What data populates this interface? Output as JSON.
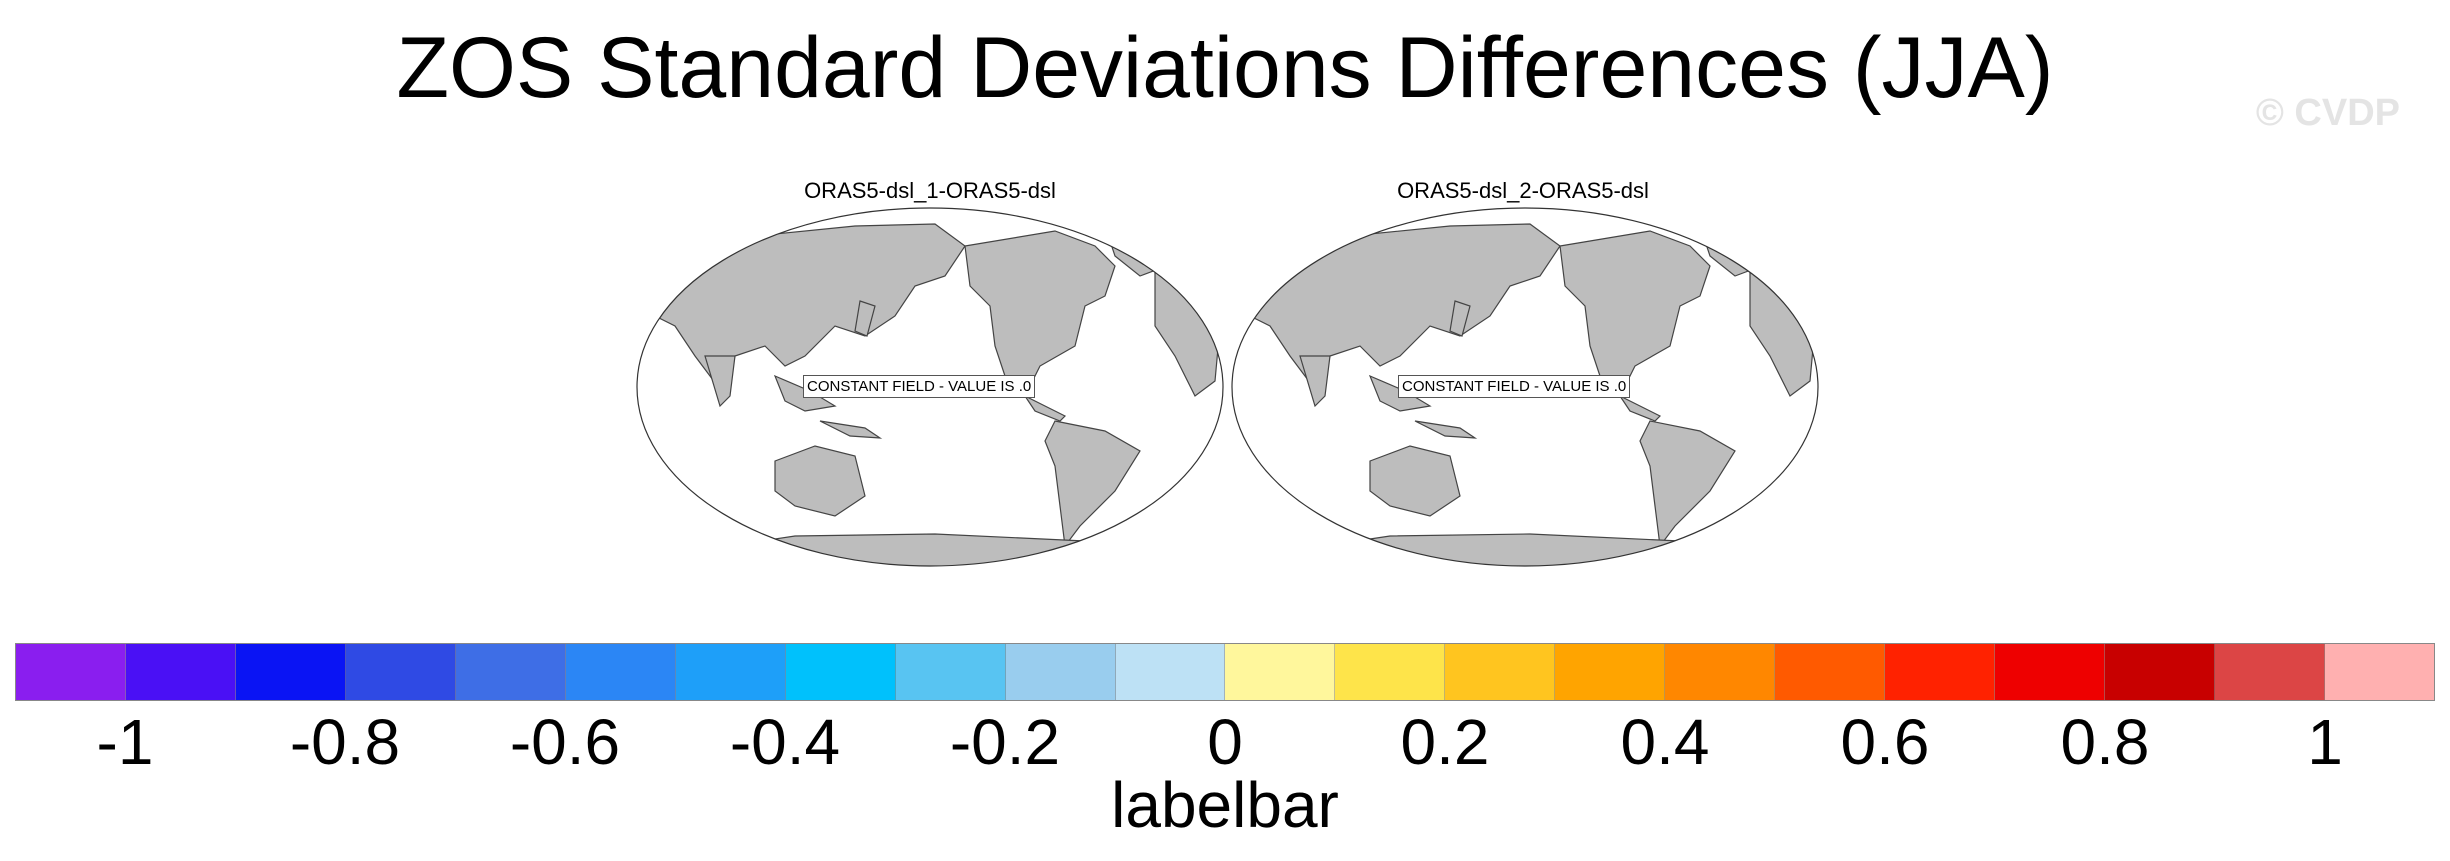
{
  "title": "ZOS Standard Deviations Differences (JJA)",
  "watermark": "© CVDP",
  "panels": [
    {
      "title": "ORAS5-dsl_1-ORAS5-dsl",
      "message": "CONSTANT FIELD - VALUE IS .0"
    },
    {
      "title": "ORAS5-dsl_2-ORAS5-dsl",
      "message": "CONSTANT FIELD - VALUE IS .0"
    }
  ],
  "map_style": {
    "land_color": "#bdbdbd",
    "ocean_color": "#ffffff",
    "projection": "Robinson",
    "central_longitude": "Pacific"
  },
  "labelbar": {
    "title": "labelbar",
    "colors": [
      "#8a1eef",
      "#4a10f5",
      "#0a14f4",
      "#2f4ae4",
      "#3e6ee6",
      "#2b86f5",
      "#1e9ff9",
      "#00c1fc",
      "#58c4f2",
      "#99cdee",
      "#bde1f5",
      "#fff79c",
      "#fee44a",
      "#ffc51f",
      "#ffa400",
      "#ff8700",
      "#ff5a00",
      "#ff2200",
      "#ee0000",
      "#c80000",
      "#dc4545",
      "#ffb0b0"
    ],
    "ticks": [
      "-1",
      "-0.8",
      "-0.6",
      "-0.4",
      "-0.2",
      "0",
      "0.2",
      "0.4",
      "0.6",
      "0.8",
      "1"
    ]
  }
}
